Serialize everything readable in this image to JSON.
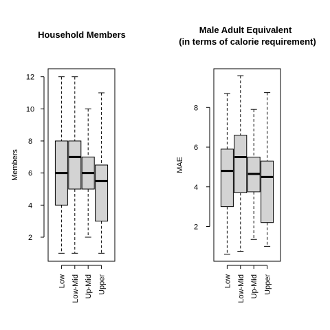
{
  "chart_data": [
    {
      "type": "box",
      "title": [
        "Household Members"
      ],
      "xlabel": "",
      "ylabel": "Members",
      "ylim": [
        0.5,
        12.5
      ],
      "yticks": [
        2,
        4,
        6,
        8,
        10,
        12
      ],
      "categories": [
        "Low",
        "Low-Mid",
        "Up-Mid",
        "Upper"
      ],
      "boxes": [
        {
          "whisker_low": 1,
          "q1": 4,
          "median": 6,
          "q3": 8,
          "whisker_high": 12
        },
        {
          "whisker_low": 1,
          "q1": 5,
          "median": 7,
          "q3": 8,
          "whisker_high": 12
        },
        {
          "whisker_low": 2,
          "q1": 5,
          "median": 6,
          "q3": 7,
          "whisker_high": 10
        },
        {
          "whisker_low": 1,
          "q1": 3,
          "median": 5.5,
          "q3": 6.5,
          "whisker_high": 11
        }
      ]
    },
    {
      "type": "box",
      "title": [
        "Male Adult Equivalent",
        "(in terms of calorie requirement)"
      ],
      "xlabel": "",
      "ylabel": "MAE",
      "ylim": [
        0.25,
        9.95
      ],
      "yticks": [
        2,
        4,
        6,
        8
      ],
      "categories": [
        "Low",
        "Low-Mid",
        "Up-Mid",
        "Upper"
      ],
      "boxes": [
        {
          "whisker_low": 0.6,
          "q1": 3.0,
          "median": 4.8,
          "q3": 5.9,
          "whisker_high": 8.7
        },
        {
          "whisker_low": 0.75,
          "q1": 3.7,
          "median": 5.5,
          "q3": 6.6,
          "whisker_high": 9.6
        },
        {
          "whisker_low": 1.35,
          "q1": 3.75,
          "median": 4.65,
          "q3": 5.5,
          "whisker_high": 7.9
        },
        {
          "whisker_low": 1.0,
          "q1": 2.2,
          "median": 4.5,
          "q3": 5.3,
          "whisker_high": 8.75
        }
      ]
    }
  ]
}
